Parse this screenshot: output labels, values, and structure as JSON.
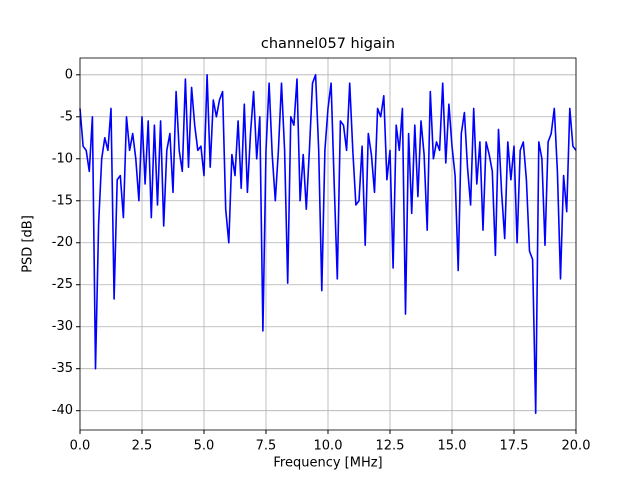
{
  "chart_data": {
    "type": "line",
    "title": "channel057 higain",
    "xlabel": "Frequency [MHz]",
    "ylabel": "PSD [dB]",
    "x": [
      0,
      0.125,
      0.25,
      0.375,
      0.5,
      0.625,
      0.75,
      0.875,
      1,
      1.125,
      1.25,
      1.375,
      1.5,
      1.625,
      1.75,
      1.875,
      2,
      2.125,
      2.25,
      2.375,
      2.5,
      2.625,
      2.75,
      2.875,
      3,
      3.125,
      3.25,
      3.375,
      3.5,
      3.625,
      3.75,
      3.875,
      4,
      4.125,
      4.25,
      4.375,
      4.5,
      4.625,
      4.75,
      4.875,
      5,
      5.125,
      5.25,
      5.375,
      5.5,
      5.625,
      5.75,
      5.875,
      6,
      6.125,
      6.25,
      6.375,
      6.5,
      6.625,
      6.75,
      6.875,
      7,
      7.125,
      7.25,
      7.375,
      7.5,
      7.625,
      7.75,
      7.875,
      8,
      8.125,
      8.25,
      8.375,
      8.5,
      8.625,
      8.75,
      8.875,
      9,
      9.125,
      9.25,
      9.375,
      9.5,
      9.625,
      9.75,
      9.875,
      10,
      10.125,
      10.25,
      10.375,
      10.5,
      10.625,
      10.75,
      10.875,
      11,
      11.125,
      11.25,
      11.375,
      11.5,
      11.625,
      11.75,
      11.875,
      12,
      12.125,
      12.25,
      12.375,
      12.5,
      12.625,
      12.75,
      12.875,
      13,
      13.125,
      13.25,
      13.375,
      13.5,
      13.625,
      13.75,
      13.875,
      14,
      14.125,
      14.25,
      14.375,
      14.5,
      14.625,
      14.75,
      14.875,
      15,
      15.125,
      15.25,
      15.375,
      15.5,
      15.625,
      15.75,
      15.875,
      16,
      16.125,
      16.25,
      16.375,
      16.5,
      16.625,
      16.75,
      16.875,
      17,
      17.125,
      17.25,
      17.375,
      17.5,
      17.625,
      17.75,
      17.875,
      18,
      18.125,
      18.25,
      18.375,
      18.5,
      18.625,
      18.75,
      18.875,
      19,
      19.125,
      19.25,
      19.375,
      19.5,
      19.625,
      19.75,
      19.875,
      20
    ],
    "series": [
      {
        "color": "#0000ff",
        "values": [
          -4,
          -8.5,
          -9,
          -11.5,
          -5,
          -35,
          -17.8,
          -10,
          -7.5,
          -9,
          -4,
          -26.7,
          -12.5,
          -12,
          -17,
          -5,
          -9,
          -7,
          -10,
          -15,
          -5,
          -13,
          -5.5,
          -17,
          -6,
          -15.5,
          -5.5,
          -18,
          -9,
          -7,
          -14,
          -2,
          -9,
          -11.5,
          -0.5,
          -11,
          -1.5,
          -6,
          -9,
          -8.5,
          -12,
          0,
          -11,
          -3,
          -5,
          -3,
          -2,
          -16,
          -20,
          -9.5,
          -12,
          -5.5,
          -13.5,
          -3.5,
          -14,
          -7,
          -2,
          -10,
          -5,
          -30.5,
          -9,
          -1,
          -9.5,
          -15,
          -9,
          -1,
          -9,
          -24.8,
          -5,
          -6,
          -0.5,
          -15,
          -9.5,
          -16,
          -9,
          -1,
          0,
          -9,
          -25.7,
          -9,
          -4,
          -1,
          -13,
          -24.3,
          -5.5,
          -6,
          -9,
          -1,
          -9,
          -15.5,
          -15,
          -8.5,
          -20.3,
          -7,
          -9.5,
          -14,
          -4,
          -5,
          -2.5,
          -12.5,
          -9,
          -23,
          -6,
          -9,
          -4,
          -28.5,
          -7,
          -16.5,
          -6,
          -14.5,
          -5.5,
          -9.5,
          -18.5,
          -2,
          -10,
          -8,
          -9,
          -1,
          -10.5,
          -3.5,
          -8.5,
          -12,
          -23.3,
          -7,
          -4.5,
          -11,
          -15.5,
          -4,
          -13,
          -8,
          -18.5,
          -8,
          -9.5,
          -11.5,
          -21.5,
          -6.5,
          -14,
          -19.5,
          -8,
          -12.5,
          -8.5,
          -20,
          -9,
          -8,
          -12.5,
          -21,
          -22,
          -40.3,
          -8,
          -10,
          -20.3,
          -8,
          -7,
          -4,
          -11.5,
          -24.3,
          -12,
          -16.3,
          -4,
          -8.5,
          -9
        ]
      }
    ],
    "xlim": [
      0,
      20
    ],
    "xticks": [
      {
        "value": 0,
        "label": "0.0"
      },
      2.5,
      {
        "value": 5,
        "label": "5.0"
      },
      7.5,
      {
        "value": 10,
        "label": "10.0"
      },
      12.5,
      {
        "value": 15,
        "label": "15.0"
      },
      17.5,
      {
        "value": 20,
        "label": "20.0"
      }
    ],
    "ylim": [
      -42.3,
      2
    ],
    "yticks": [
      0,
      -5,
      -10,
      -15,
      -20,
      -25,
      -30,
      -35,
      -40
    ],
    "grid": true
  }
}
